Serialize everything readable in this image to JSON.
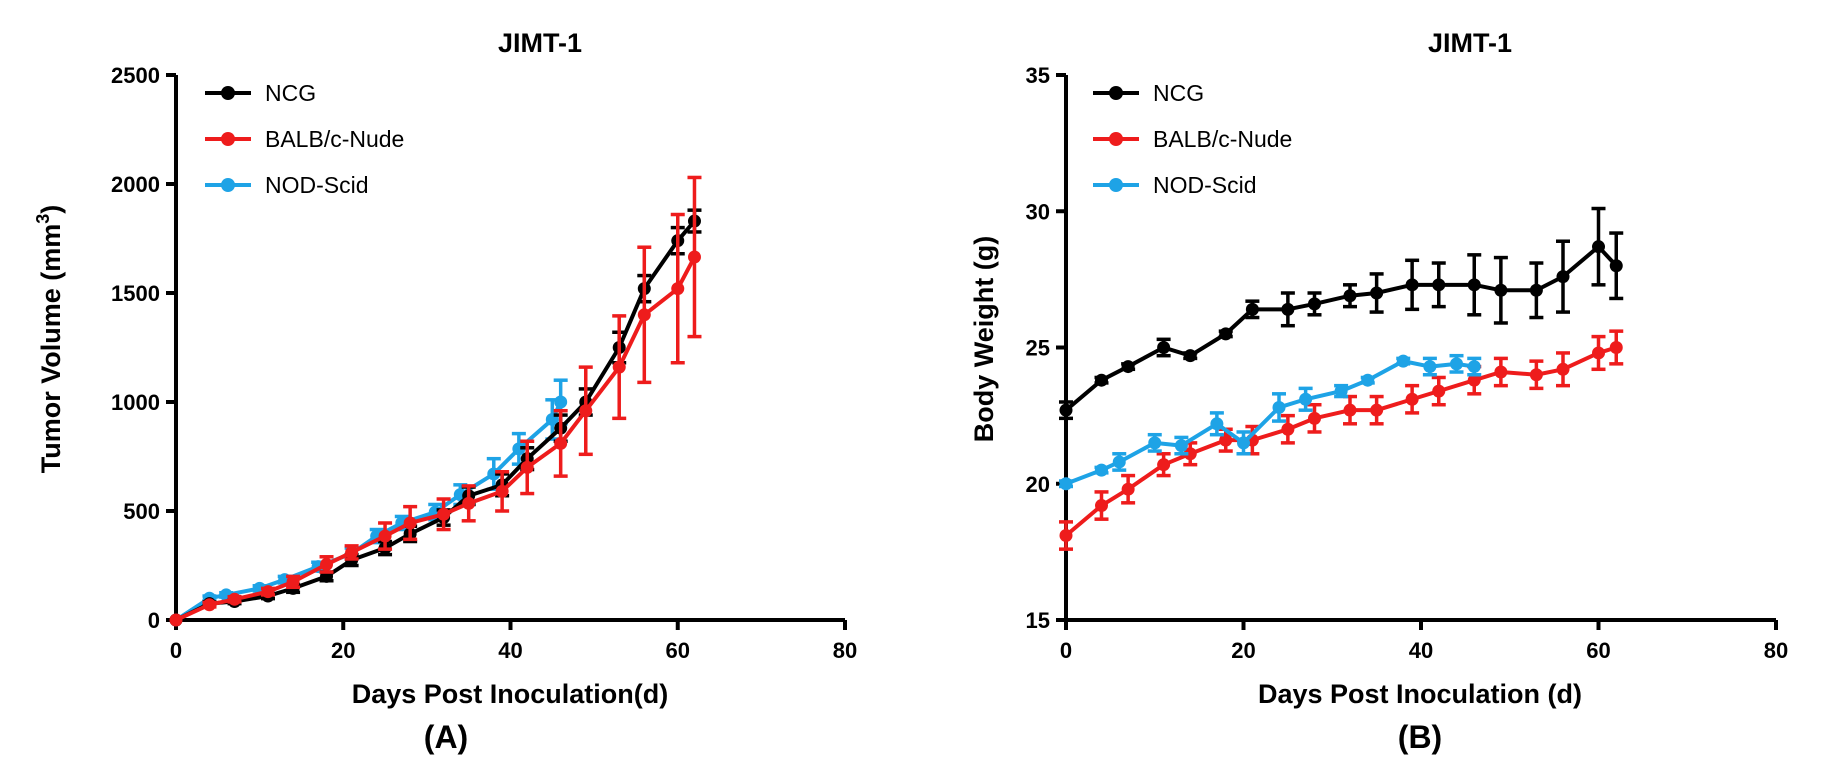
{
  "colors": {
    "NCG": "#000000",
    "BALB/c-Nude": "#ee1c1c",
    "NOD-Scid": "#1ea3e6"
  },
  "chart_data": [
    {
      "type": "line",
      "panel_label": "(A)",
      "title": "JIMT-1",
      "xlabel": "Days Post Inoculation(d)",
      "ylabel_main": "Tumor Volume (mm",
      "ylabel_sup": "3",
      "ylabel_end": ")",
      "xlim": [
        0,
        80
      ],
      "ylim": [
        0,
        2500
      ],
      "xticks": [
        0,
        20,
        40,
        60,
        80
      ],
      "yticks": [
        0,
        500,
        1000,
        1500,
        2000,
        2500
      ],
      "legend_position": "top-left",
      "series": [
        {
          "name": "NOD-Scid",
          "color": "#1ea3e6",
          "x": [
            0,
            4,
            6,
            10,
            13,
            17,
            21,
            24,
            27,
            31,
            34,
            38,
            41,
            45,
            46
          ],
          "y": [
            0,
            100,
            115,
            145,
            185,
            245,
            305,
            385,
            445,
            495,
            575,
            670,
            785,
            920,
            1000
          ],
          "err": [
            0,
            10,
            10,
            12,
            15,
            20,
            25,
            30,
            30,
            35,
            45,
            70,
            70,
            90,
            100
          ]
        },
        {
          "name": "NCG",
          "color": "#000000",
          "x": [
            0,
            4,
            7,
            11,
            14,
            18,
            21,
            25,
            28,
            32,
            35,
            39,
            42,
            46,
            49,
            53,
            56,
            60,
            62
          ],
          "y": [
            0,
            75,
            85,
            110,
            145,
            200,
            275,
            330,
            395,
            470,
            570,
            620,
            740,
            880,
            1000,
            1250,
            1520,
            1740,
            1830
          ],
          "err": [
            0,
            8,
            10,
            12,
            18,
            20,
            25,
            30,
            35,
            35,
            40,
            50,
            50,
            60,
            60,
            70,
            60,
            60,
            50
          ]
        },
        {
          "name": "BALB/c-Nude",
          "color": "#ee1c1c",
          "x": [
            0,
            4,
            7,
            11,
            14,
            18,
            21,
            25,
            28,
            32,
            35,
            39,
            42,
            46,
            49,
            53,
            56,
            60,
            62
          ],
          "y": [
            0,
            70,
            95,
            130,
            175,
            255,
            310,
            385,
            445,
            485,
            535,
            590,
            700,
            810,
            960,
            1160,
            1400,
            1520,
            1665
          ],
          "err": [
            0,
            10,
            12,
            15,
            25,
            35,
            30,
            60,
            75,
            70,
            80,
            90,
            120,
            150,
            200,
            235,
            310,
            340,
            365
          ]
        }
      ]
    },
    {
      "type": "line",
      "panel_label": "(B)",
      "title": "JIMT-1",
      "xlabel": "Days Post Inoculation (d)",
      "ylabel": "Body Weight (g)",
      "xlim": [
        0,
        80
      ],
      "ylim": [
        15,
        35
      ],
      "xticks": [
        0,
        20,
        40,
        60,
        80
      ],
      "yticks": [
        15,
        20,
        25,
        30,
        35
      ],
      "legend_position": "top-left",
      "series": [
        {
          "name": "NCG",
          "color": "#000000",
          "x": [
            0,
            4,
            7,
            11,
            14,
            18,
            21,
            25,
            28,
            32,
            35,
            39,
            42,
            46,
            49,
            53,
            56,
            60,
            62
          ],
          "y": [
            22.7,
            23.8,
            24.3,
            25.0,
            24.7,
            25.5,
            26.4,
            26.4,
            26.6,
            26.9,
            27.0,
            27.3,
            27.3,
            27.3,
            27.1,
            27.1,
            27.6,
            28.7,
            28.0
          ],
          "err": [
            0.3,
            0.1,
            0.1,
            0.3,
            0.1,
            0.1,
            0.3,
            0.6,
            0.4,
            0.4,
            0.7,
            0.9,
            0.8,
            1.1,
            1.2,
            1.0,
            1.3,
            1.4,
            1.2
          ]
        },
        {
          "name": "BALB/c-Nude",
          "color": "#ee1c1c",
          "x": [
            0,
            4,
            7,
            11,
            14,
            18,
            21,
            25,
            28,
            32,
            35,
            39,
            42,
            46,
            49,
            53,
            56,
            60,
            62
          ],
          "y": [
            18.1,
            19.2,
            19.8,
            20.7,
            21.1,
            21.6,
            21.6,
            22.0,
            22.4,
            22.7,
            22.7,
            23.1,
            23.4,
            23.8,
            24.1,
            24.0,
            24.2,
            24.8,
            25.0
          ],
          "err": [
            0.5,
            0.5,
            0.5,
            0.4,
            0.4,
            0.4,
            0.5,
            0.5,
            0.5,
            0.5,
            0.5,
            0.5,
            0.5,
            0.5,
            0.5,
            0.5,
            0.6,
            0.6,
            0.6
          ]
        },
        {
          "name": "NOD-Scid",
          "color": "#1ea3e6",
          "x": [
            0,
            4,
            6,
            10,
            13,
            17,
            20,
            24,
            27,
            31,
            34,
            38,
            41,
            44,
            46
          ],
          "y": [
            20.0,
            20.5,
            20.8,
            21.5,
            21.4,
            22.2,
            21.5,
            22.8,
            23.1,
            23.4,
            23.8,
            24.5,
            24.3,
            24.4,
            24.3
          ],
          "err": [
            0.1,
            0.1,
            0.3,
            0.3,
            0.3,
            0.4,
            0.4,
            0.5,
            0.4,
            0.2,
            0.1,
            0.1,
            0.3,
            0.3,
            0.3
          ]
        }
      ]
    }
  ]
}
